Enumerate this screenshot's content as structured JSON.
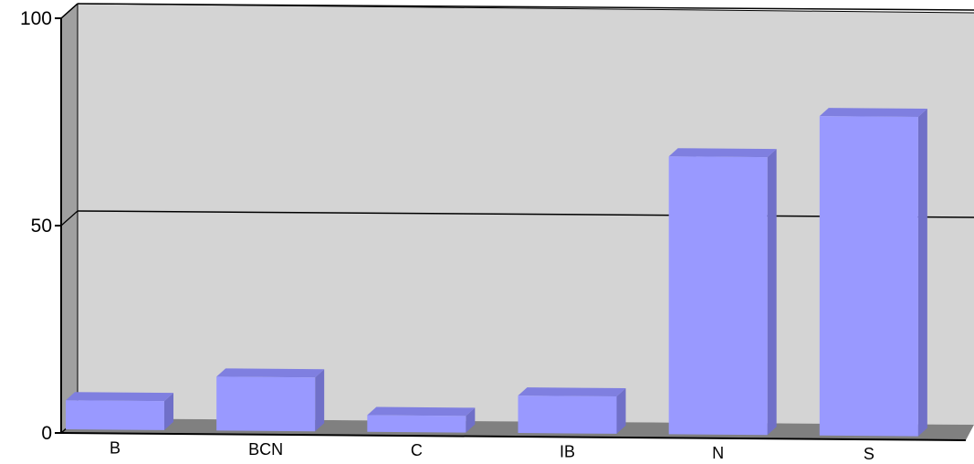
{
  "chart_data": {
    "type": "bar",
    "style": "3d",
    "categories": [
      "B",
      "BCN",
      "C",
      "IB",
      "N",
      "S"
    ],
    "values": [
      7,
      13,
      4,
      9,
      67,
      77
    ],
    "ylim": [
      0,
      100
    ],
    "yticks": [
      {
        "value": 0,
        "label": "0"
      },
      {
        "value": 50,
        "label": "50"
      },
      {
        "value": 100,
        "label": "100"
      }
    ],
    "grid": true,
    "legend": "none"
  },
  "colors": {
    "bar_front": "#9999ff",
    "bar_top": "#7f7fe0",
    "bar_side": "#7070c8",
    "back_wall": "#d4d4d4",
    "side_wall": "#a0a0a0",
    "floor": "#808080",
    "gridline": "#000000"
  }
}
